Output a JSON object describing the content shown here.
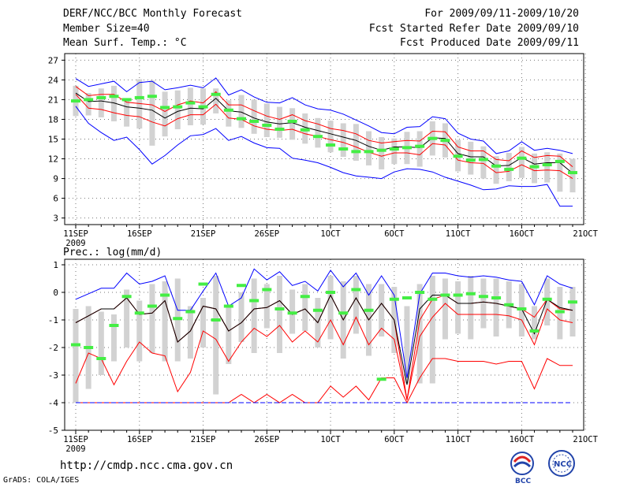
{
  "header": {
    "title": "DERF/NCC/BCC Monthly Forecast",
    "member_size": "Member Size=40",
    "variable": "Mean Surf. Temp.: °C",
    "period": "For 2009/09/11-2009/10/20",
    "fcst_started": "Fcst Started Refer Date 2009/09/10",
    "fcst_produced": "Fcst Produced Date 2009/09/11"
  },
  "footer": {
    "url": "http://cmdp.ncc.cma.gov.cn",
    "grads_credit": "GrADS: COLA/IGES",
    "logo_bcc": "BCC",
    "logo_ncc": "NCC"
  },
  "colors": {
    "bar": "#d2d2d2",
    "mean": "#000000",
    "ensemble_minmax": "#0000ff",
    "percentile": "#ff0000",
    "observed_marker": "#44ee44",
    "grid": "#777777"
  },
  "chart_data": [
    {
      "type": "line",
      "title": "Mean Surf. Temp.: °C",
      "ylim": [
        2,
        28
      ],
      "yticks": [
        3,
        6,
        9,
        12,
        15,
        18,
        21,
        24,
        27
      ],
      "ytick_labels": [
        "3",
        "6",
        "9",
        "12",
        "15",
        "18",
        "21",
        "24",
        "27"
      ],
      "xlabels": [
        "11SEP",
        "16SEP",
        "21SEP",
        "26SEP",
        "1OCT",
        "6OCT",
        "11OCT",
        "16OCT",
        "21OCT"
      ],
      "xlabel_year": "2009",
      "ndays": 40,
      "series": [
        {
          "name": "ensemble-max",
          "color": "#0000ff",
          "values": [
            24.2,
            23.0,
            23.4,
            23.8,
            22.2,
            23.6,
            23.8,
            22.5,
            22.8,
            23.2,
            22.8,
            24.3,
            21.7,
            22.5,
            21.4,
            20.6,
            20.5,
            21.3,
            20.2,
            19.6,
            19.4,
            18.8,
            17.9,
            17.0,
            16.0,
            15.8,
            16.8,
            16.9,
            18.4,
            18.1,
            15.9,
            15.0,
            14.7,
            12.8,
            13.2,
            14.6,
            13.3,
            13.6,
            13.3,
            12.8
          ]
        },
        {
          "name": "p90",
          "color": "#ff0000",
          "values": [
            23.0,
            21.6,
            21.8,
            21.8,
            20.6,
            20.4,
            20.2,
            19.2,
            20.2,
            20.8,
            20.5,
            22.2,
            20.2,
            20.2,
            19.3,
            18.5,
            18.0,
            18.7,
            17.8,
            17.3,
            16.6,
            16.3,
            15.8,
            14.8,
            14.4,
            14.6,
            14.8,
            14.7,
            16.2,
            16.1,
            13.8,
            13.2,
            13.2,
            11.9,
            11.7,
            13.2,
            12.2,
            12.5,
            12.4,
            10.8
          ]
        },
        {
          "name": "mean",
          "color": "#000000",
          "values": [
            22.0,
            20.7,
            20.8,
            20.5,
            19.9,
            19.7,
            19.4,
            18.2,
            19.2,
            19.7,
            19.6,
            21.2,
            19.3,
            19.1,
            18.2,
            17.6,
            17.3,
            17.5,
            16.8,
            16.3,
            15.8,
            15.3,
            14.8,
            13.9,
            13.3,
            13.8,
            13.8,
            13.7,
            15.2,
            15.1,
            12.8,
            12.3,
            12.3,
            10.9,
            11.0,
            12.2,
            11.2,
            11.4,
            11.4,
            9.8
          ]
        },
        {
          "name": "p10",
          "color": "#ff0000",
          "values": [
            21.8,
            19.7,
            19.5,
            19.0,
            18.6,
            18.4,
            17.6,
            17.0,
            18.1,
            18.7,
            18.7,
            20.3,
            18.2,
            18.0,
            17.0,
            16.5,
            16.3,
            16.5,
            15.8,
            15.4,
            14.9,
            14.5,
            13.8,
            13.0,
            12.4,
            12.9,
            12.9,
            12.6,
            14.3,
            14.1,
            11.8,
            11.4,
            11.3,
            9.9,
            10.1,
            11.1,
            10.2,
            10.3,
            10.2,
            9.0
          ]
        },
        {
          "name": "ensemble-min",
          "color": "#0000ff",
          "values": [
            20.0,
            17.4,
            16.0,
            14.8,
            15.3,
            13.4,
            11.2,
            12.5,
            14.1,
            15.5,
            15.7,
            16.6,
            14.8,
            15.4,
            14.4,
            13.7,
            13.6,
            12.1,
            11.8,
            11.4,
            10.7,
            9.9,
            9.4,
            9.2,
            9.0,
            10.0,
            10.5,
            10.4,
            10.0,
            9.2,
            8.6,
            8.0,
            7.3,
            7.4,
            7.9,
            7.8,
            7.8,
            8.1,
            4.8,
            4.8
          ]
        }
      ],
      "bars": {
        "low": [
          18.5,
          18.6,
          18.3,
          17.7,
          16.9,
          16.6,
          14.0,
          15.4,
          16.5,
          17.1,
          17.2,
          18.9,
          16.9,
          16.7,
          15.8,
          15.3,
          15.2,
          14.9,
          14.3,
          13.7,
          13.0,
          12.3,
          11.7,
          11.0,
          10.4,
          11.2,
          11.2,
          10.8,
          12.5,
          12.2,
          10.1,
          9.6,
          9.0,
          8.2,
          8.6,
          9.1,
          8.3,
          8.4,
          7.0,
          6.9
        ],
        "high": [
          23.1,
          22.0,
          22.7,
          23.1,
          21.2,
          24.1,
          23.9,
          22.2,
          22.4,
          22.8,
          22.7,
          22.7,
          20.9,
          21.7,
          21.0,
          20.4,
          19.9,
          19.7,
          18.9,
          18.2,
          17.8,
          17.4,
          17.3,
          16.2,
          15.3,
          15.1,
          16.1,
          16.2,
          17.7,
          17.4,
          14.9,
          14.6,
          13.9,
          12.4,
          12.9,
          13.8,
          12.8,
          13.0,
          12.8,
          12.0
        ]
      },
      "observed": [
        20.8,
        21.0,
        21.3,
        21.5,
        21.0,
        21.3,
        21.5,
        19.8,
        19.9,
        20.5,
        19.9,
        21.8,
        19.4,
        18.1,
        17.7,
        17.1,
        16.5,
        17.7,
        16.4,
        15.4,
        14.1,
        13.5,
        13.1,
        13.1,
        13.3,
        13.5,
        13.7,
        13.9,
        15.1,
        14.8,
        12.4,
        11.8,
        11.9,
        10.9,
        10.4,
        12.1,
        10.8,
        11.1,
        11.6,
        9.9
      ]
    },
    {
      "type": "line",
      "title": "Prec.: log(mm/d)",
      "ylim": [
        -5,
        1.2
      ],
      "yticks": [
        -5,
        -4,
        -3,
        -2,
        -1,
        0,
        1
      ],
      "ytick_labels": [
        "-5",
        "-4",
        "-3",
        "-2",
        "-1",
        "0",
        "1"
      ],
      "xlabels": [
        "11SEP",
        "16SEP",
        "21SEP",
        "26SEP",
        "1OCT",
        "6OCT",
        "11OCT",
        "16OCT",
        "21OCT"
      ],
      "xlabel_year": "2009",
      "ndays": 40,
      "series": [
        {
          "name": "ensemble-max",
          "color": "#0000ff",
          "values": [
            -0.25,
            -0.05,
            0.15,
            0.15,
            0.7,
            0.3,
            0.4,
            0.6,
            -0.65,
            -0.65,
            0.05,
            0.7,
            -0.5,
            -0.2,
            0.85,
            0.45,
            0.75,
            0.25,
            0.4,
            0.05,
            0.8,
            0.2,
            0.7,
            -0.1,
            0.6,
            -0.1,
            -3.1,
            -0.05,
            0.7,
            0.7,
            0.6,
            0.55,
            0.6,
            0.55,
            0.45,
            0.4,
            -0.45,
            0.6,
            0.3,
            0.15
          ]
        },
        {
          "name": "p90",
          "color": "#ff0000",
          "values": [
            -1.1,
            -0.85,
            -0.6,
            -0.6,
            -0.2,
            -0.8,
            -0.75,
            -0.3,
            -1.8,
            -1.4,
            -0.5,
            -0.6,
            -1.4,
            -1.1,
            -0.6,
            -0.55,
            -0.3,
            -0.8,
            -0.6,
            -1.1,
            -0.1,
            -1.0,
            -0.2,
            -1.0,
            -0.4,
            -1.0,
            -3.9,
            -1.0,
            -0.25,
            -0.1,
            -0.4,
            -0.4,
            -0.35,
            -0.4,
            -0.5,
            -0.6,
            -0.9,
            -0.25,
            -0.6,
            -0.65
          ]
        },
        {
          "name": "mean",
          "color": "#000000",
          "values": [
            -1.1,
            -0.85,
            -0.6,
            -0.6,
            -0.2,
            -0.8,
            -0.75,
            -0.3,
            -1.8,
            -1.4,
            -0.5,
            -0.6,
            -1.4,
            -1.1,
            -0.6,
            -0.55,
            -0.3,
            -0.8,
            -0.6,
            -1.1,
            -0.1,
            -1.0,
            -0.2,
            -1.0,
            -0.4,
            -1.0,
            -3.35,
            -0.6,
            -0.1,
            -0.1,
            -0.4,
            -0.4,
            -0.35,
            -0.4,
            -0.5,
            -0.6,
            -1.5,
            -0.25,
            -0.55,
            -0.65
          ]
        },
        {
          "name": "p10",
          "color": "#ff0000",
          "values": [
            -3.3,
            -2.2,
            -2.4,
            -3.35,
            -2.5,
            -1.8,
            -2.2,
            -2.3,
            -3.6,
            -2.9,
            -1.4,
            -1.7,
            -2.5,
            -1.8,
            -1.3,
            -1.6,
            -1.2,
            -1.8,
            -1.4,
            -1.8,
            -1.0,
            -1.9,
            -0.9,
            -1.9,
            -1.3,
            -1.7,
            -3.9,
            -1.6,
            -0.9,
            -0.4,
            -0.8,
            -0.8,
            -0.8,
            -0.8,
            -0.85,
            -1.0,
            -1.9,
            -0.6,
            -1.0,
            -1.1
          ]
        },
        {
          "name": "p10-lower",
          "color": "#ff0000",
          "values": [
            -4.0,
            -4.0,
            -4.0,
            -4.0,
            -4.0,
            -4.0,
            -4.0,
            -4.0,
            -4.0,
            -4.0,
            -4.0,
            -4.0,
            -4.0,
            -3.7,
            -4.0,
            -3.7,
            -4.0,
            -3.7,
            -4.0,
            -4.0,
            -3.4,
            -3.8,
            -3.4,
            -3.9,
            -3.1,
            -3.1,
            -4.0,
            -3.1,
            -2.4,
            -2.4,
            -2.5,
            -2.5,
            -2.5,
            -2.6,
            -2.5,
            -2.5,
            -3.5,
            -2.4,
            -2.65,
            -2.65
          ]
        },
        {
          "name": "ensemble-min",
          "color": "#0000ff",
          "values": [
            -4,
            -4,
            -4,
            -4,
            -4,
            -4,
            -4,
            -4,
            -4,
            -4,
            -4,
            -4,
            -4,
            -4,
            -4,
            -4,
            -4,
            -4,
            -4,
            -4,
            -4,
            -4,
            -4,
            -4,
            -4,
            -4,
            -4,
            -4,
            -4,
            -4,
            -4,
            -4,
            -4,
            -4,
            -4,
            -4,
            -4,
            -4,
            -4,
            -4
          ]
        }
      ],
      "bars": {
        "low": [
          -4.0,
          -3.5,
          -3.0,
          -2.5,
          -2.0,
          -2.5,
          -2.2,
          -2.5,
          -2.5,
          -2.4,
          -2.0,
          -3.7,
          -2.6,
          -1.8,
          -2.2,
          -1.3,
          -2.2,
          -1.5,
          -1.4,
          -2.0,
          -1.7,
          -2.4,
          -1.5,
          -2.3,
          -1.6,
          -2.2,
          -3.3,
          -3.3,
          -3.3,
          -1.7,
          -1.5,
          -1.7,
          -1.3,
          -1.6,
          -1.3,
          -1.6,
          -1.7,
          -1.2,
          -1.7,
          -1.6
        ],
        "high": [
          -0.6,
          -0.5,
          -0.7,
          -0.8,
          0.1,
          -0.3,
          0.3,
          0.4,
          0.5,
          -0.5,
          -0.2,
          0.6,
          -0.5,
          0.0,
          0.5,
          0.3,
          0.6,
          0.1,
          0.3,
          -0.2,
          0.6,
          0.4,
          0.6,
          0.3,
          0.3,
          0.2,
          -0.5,
          0.3,
          0.6,
          0.5,
          0.4,
          0.6,
          0.5,
          0.5,
          0.4,
          0.3,
          -0.5,
          0.5,
          0.2,
          0.2
        ]
      },
      "observed": [
        -1.9,
        -2.0,
        -2.4,
        -1.2,
        -0.15,
        -0.75,
        -0.5,
        -0.1,
        -0.95,
        -0.7,
        0.3,
        -1.0,
        -0.5,
        0.25,
        -0.3,
        0.1,
        -0.6,
        -0.75,
        -0.15,
        -0.65,
        0.0,
        -0.75,
        0.1,
        -0.65,
        -3.15,
        -0.25,
        -0.2,
        0.0,
        -0.25,
        -0.1,
        -0.1,
        -0.05,
        -0.15,
        -0.2,
        -0.45,
        -0.6,
        -1.4,
        -0.25,
        -0.7,
        -0.35
      ]
    }
  ]
}
